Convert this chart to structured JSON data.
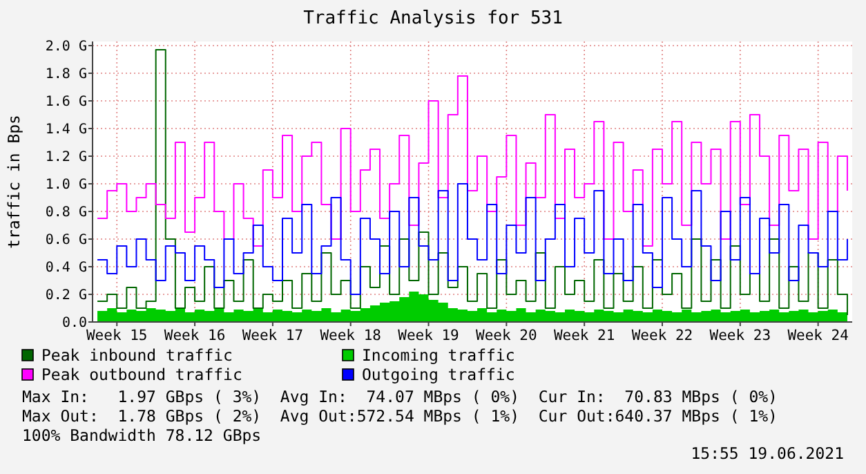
{
  "chart_data": {
    "type": "line",
    "title": "Traffic Analysis for 531",
    "ylabel": "traffic in Bps",
    "categories": [
      null,
      null,
      "Week 15",
      null,
      null,
      null,
      null,
      null,
      null,
      null,
      "Week 16",
      null,
      null,
      null,
      null,
      null,
      null,
      null,
      "Week 17",
      null,
      null,
      null,
      null,
      null,
      null,
      null,
      "Week 18",
      null,
      null,
      null,
      null,
      null,
      null,
      null,
      "Week 19",
      null,
      null,
      null,
      null,
      null,
      null,
      null,
      "Week 20",
      null,
      null,
      null,
      null,
      null,
      null,
      null,
      "Week 21",
      null,
      null,
      null,
      null,
      null,
      null,
      null,
      "Week 22",
      null,
      null,
      null,
      null,
      null,
      null,
      null,
      "Week 23",
      null,
      null,
      null,
      null,
      null,
      null,
      null,
      "Week 24",
      null,
      null,
      null
    ],
    "series": [
      {
        "name": "Peak inbound traffic",
        "type": "step",
        "color": "#006600",
        "values": [
          0.15,
          0.2,
          0.1,
          0.25,
          0.1,
          0.15,
          1.97,
          0.6,
          0.1,
          0.25,
          0.15,
          0.4,
          0.1,
          0.3,
          0.15,
          0.45,
          0.1,
          0.2,
          0.15,
          0.3,
          0.1,
          0.35,
          0.15,
          0.5,
          0.2,
          0.3,
          0.1,
          0.4,
          0.25,
          0.55,
          0.2,
          0.6,
          0.3,
          0.65,
          0.2,
          0.5,
          0.25,
          0.4,
          0.15,
          0.35,
          0.1,
          0.45,
          0.2,
          0.3,
          0.15,
          0.5,
          0.1,
          0.4,
          0.2,
          0.3,
          0.15,
          0.45,
          0.1,
          0.35,
          0.15,
          0.4,
          0.1,
          0.45,
          0.2,
          0.35,
          0.1,
          0.6,
          0.15,
          0.45,
          0.1,
          0.55,
          0.2,
          0.35,
          0.15,
          0.6,
          0.1,
          0.4,
          0.15,
          0.5,
          0.1,
          0.45,
          0.2,
          0.05
        ]
      },
      {
        "name": "Incoming traffic",
        "type": "area",
        "color": "#00cc00",
        "values": [
          0.08,
          0.1,
          0.07,
          0.09,
          0.08,
          0.1,
          0.09,
          0.08,
          0.1,
          0.07,
          0.09,
          0.08,
          0.1,
          0.07,
          0.09,
          0.08,
          0.1,
          0.07,
          0.09,
          0.08,
          0.07,
          0.09,
          0.08,
          0.1,
          0.07,
          0.09,
          0.08,
          0.1,
          0.12,
          0.14,
          0.15,
          0.18,
          0.22,
          0.2,
          0.16,
          0.14,
          0.1,
          0.09,
          0.08,
          0.1,
          0.07,
          0.09,
          0.08,
          0.1,
          0.07,
          0.09,
          0.08,
          0.07,
          0.09,
          0.08,
          0.07,
          0.09,
          0.08,
          0.07,
          0.09,
          0.08,
          0.07,
          0.09,
          0.08,
          0.07,
          0.09,
          0.07,
          0.08,
          0.09,
          0.07,
          0.08,
          0.09,
          0.07,
          0.08,
          0.09,
          0.07,
          0.08,
          0.09,
          0.07,
          0.08,
          0.09,
          0.07,
          0.08
        ]
      },
      {
        "name": "Peak outbound traffic",
        "type": "step",
        "color": "#ff00ff",
        "values": [
          0.75,
          0.95,
          1.0,
          0.8,
          0.9,
          1.0,
          0.85,
          0.75,
          1.3,
          0.65,
          0.9,
          1.3,
          0.8,
          0.6,
          1.0,
          0.75,
          0.55,
          1.1,
          0.9,
          1.35,
          0.8,
          1.2,
          1.3,
          0.85,
          0.6,
          1.4,
          0.8,
          1.1,
          1.25,
          0.75,
          1.0,
          1.35,
          0.7,
          1.15,
          1.6,
          0.9,
          1.5,
          1.78,
          0.95,
          1.2,
          0.8,
          1.05,
          1.35,
          0.7,
          1.15,
          0.9,
          1.5,
          0.75,
          1.25,
          0.9,
          1.0,
          1.45,
          0.6,
          1.3,
          0.8,
          1.1,
          0.55,
          1.25,
          1.0,
          1.45,
          0.7,
          1.3,
          1.0,
          1.25,
          0.6,
          1.45,
          0.85,
          1.5,
          1.2,
          0.7,
          1.35,
          0.95,
          1.25,
          0.6,
          1.3,
          0.8,
          1.2,
          0.95
        ]
      },
      {
        "name": "Outgoing traffic",
        "type": "step",
        "color": "#0000ff",
        "values": [
          0.45,
          0.35,
          0.55,
          0.4,
          0.6,
          0.45,
          0.3,
          0.55,
          0.5,
          0.3,
          0.55,
          0.45,
          0.25,
          0.6,
          0.35,
          0.5,
          0.7,
          0.4,
          0.3,
          0.75,
          0.5,
          0.85,
          0.35,
          0.55,
          0.9,
          0.45,
          0.2,
          0.75,
          0.6,
          0.35,
          0.8,
          0.4,
          0.9,
          0.55,
          0.45,
          0.95,
          0.3,
          1.0,
          0.6,
          0.45,
          0.85,
          0.35,
          0.7,
          0.5,
          0.9,
          0.3,
          0.6,
          0.85,
          0.4,
          0.75,
          0.5,
          0.95,
          0.35,
          0.6,
          0.3,
          0.85,
          0.5,
          0.25,
          0.9,
          0.6,
          0.4,
          0.95,
          0.55,
          0.3,
          0.8,
          0.45,
          0.9,
          0.35,
          0.75,
          0.5,
          0.85,
          0.3,
          0.7,
          0.5,
          0.4,
          0.8,
          0.45,
          0.6
        ]
      }
    ],
    "ylim": [
      0,
      2.03
    ],
    "yticks": [
      {
        "value": 0,
        "label": "0.0"
      },
      {
        "value": 0.2,
        "label": "0.2 G"
      },
      {
        "value": 0.4,
        "label": "0.4 G"
      },
      {
        "value": 0.6,
        "label": "0.6 G"
      },
      {
        "value": 0.8,
        "label": "0.8 G"
      },
      {
        "value": 1.0,
        "label": "1.0 G"
      },
      {
        "value": 1.2,
        "label": "1.2 G"
      },
      {
        "value": 1.4,
        "label": "1.4 G"
      },
      {
        "value": 1.6,
        "label": "1.6 G"
      },
      {
        "value": 1.8,
        "label": "1.8 G"
      },
      {
        "value": 2.0,
        "label": "2.0 G"
      }
    ],
    "grid": true,
    "legend": "bottom",
    "marker": "none",
    "line_style": "solid",
    "annotations": [
      "Max In:   1.97 GBps ( 3%)  Avg In:  74.07 MBps ( 0%)  Cur In:  70.83 MBps ( 0%)",
      "Max Out:  1.78 GBps ( 2%)  Avg Out:572.54 MBps ( 1%)  Cur Out:640.37 MBps ( 1%)",
      "100% Bandwidth 78.12 GBps",
      "15:55 19.06.2021"
    ]
  }
}
